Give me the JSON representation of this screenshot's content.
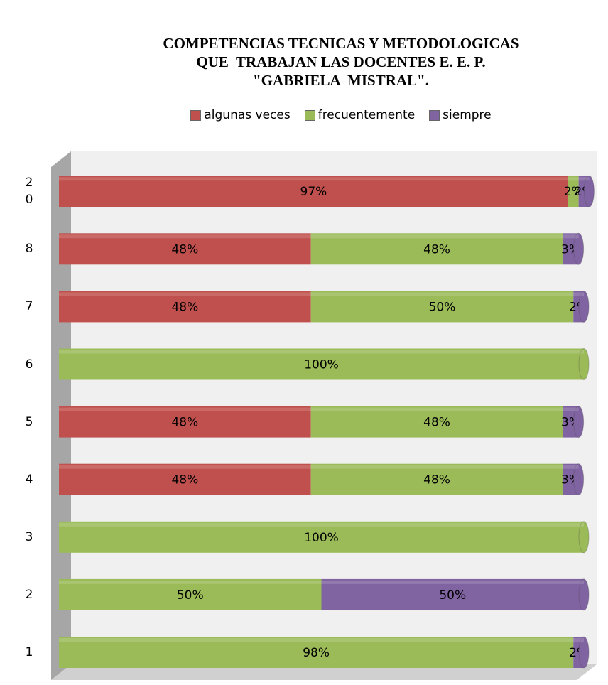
{
  "chart_data": {
    "type": "bar",
    "orientation": "horizontal",
    "stacked": true,
    "title": [
      "COMPETENCIAS TECNICAS Y METODOLOGICAS",
      "QUE  TRABAJAN LAS DOCENTES E. E. P.",
      "\"GABRIELA  MISTRAL\"."
    ],
    "categories": [
      "1",
      "2",
      "3",
      "4",
      "5",
      "6",
      "7",
      "8",
      "20"
    ],
    "xlim": [
      0,
      100
    ],
    "legend": "top",
    "series": [
      {
        "name": "algunas veces",
        "color": "#c0504d",
        "values": [
          0,
          0,
          0,
          48,
          48,
          0,
          48,
          48,
          97
        ],
        "value_labels": [
          null,
          null,
          null,
          "48%",
          "48%",
          null,
          "48%",
          "48%",
          "97%"
        ]
      },
      {
        "name": "frecuentemente",
        "color": "#9bbb59",
        "values": [
          98,
          50,
          100,
          48,
          48,
          100,
          50,
          48,
          2
        ],
        "value_labels": [
          "98%",
          "50%",
          "100%",
          "48%",
          "48%",
          "100%",
          "50%",
          "48%",
          "2%"
        ]
      },
      {
        "name": "siempre",
        "color": "#8064a2",
        "values": [
          2,
          50,
          0,
          3,
          3,
          0,
          2,
          3,
          2
        ],
        "value_labels": [
          "2%",
          "50%",
          null,
          "3%",
          "3%",
          null,
          "2%",
          "3%",
          "2%"
        ]
      }
    ]
  }
}
